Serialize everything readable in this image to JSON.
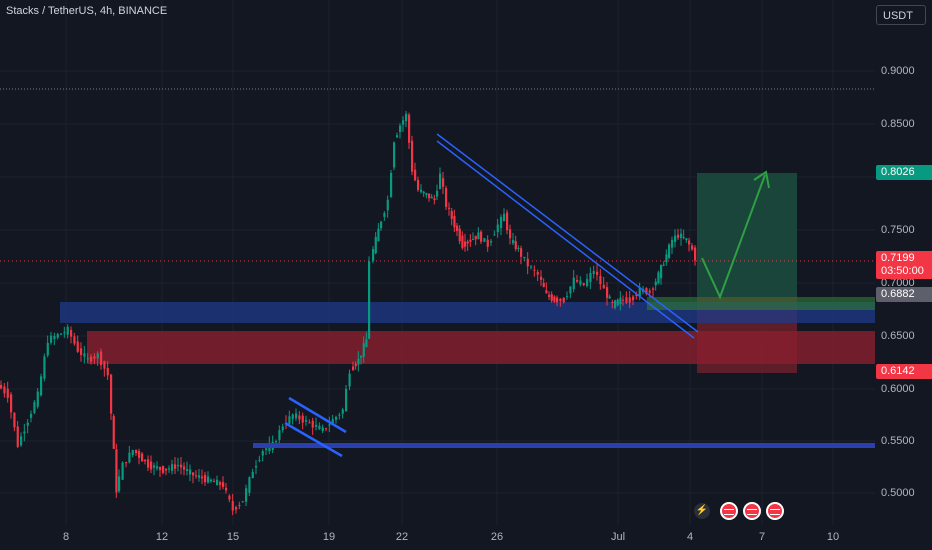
{
  "header": {
    "title": "Stacks / TetherUS, 4h, BINANCE",
    "currency": "USDT"
  },
  "y_axis": {
    "ticks": [
      "0.9000",
      "0.8500",
      "0.8000",
      "0.7500",
      "0.7000",
      "0.6500",
      "0.6000",
      "0.5500",
      "0.5000"
    ]
  },
  "x_axis": {
    "ticks": [
      "8",
      "12",
      "15",
      "19",
      "22",
      "26",
      "Jul",
      "4",
      "7",
      "10"
    ]
  },
  "price_labels": {
    "target": "0.8026",
    "last_price": "0.7199",
    "countdown": "03:50:00",
    "entry": "0.6882",
    "stop": "0.6142"
  },
  "colors": {
    "background": "#131722",
    "up": "#089981",
    "down": "#f23645",
    "blue_zone": "#1e3a8a",
    "red_zone": "#8b1f2e",
    "trendline": "#2962ff",
    "target_zone": "#1b4d3e",
    "stop_zone": "#6b1f2a",
    "arrow": "#2ea043"
  },
  "events": {
    "icons": [
      "lightning-icon",
      "us-flag-icon",
      "us-flag-icon",
      "us-flag-icon"
    ]
  }
}
